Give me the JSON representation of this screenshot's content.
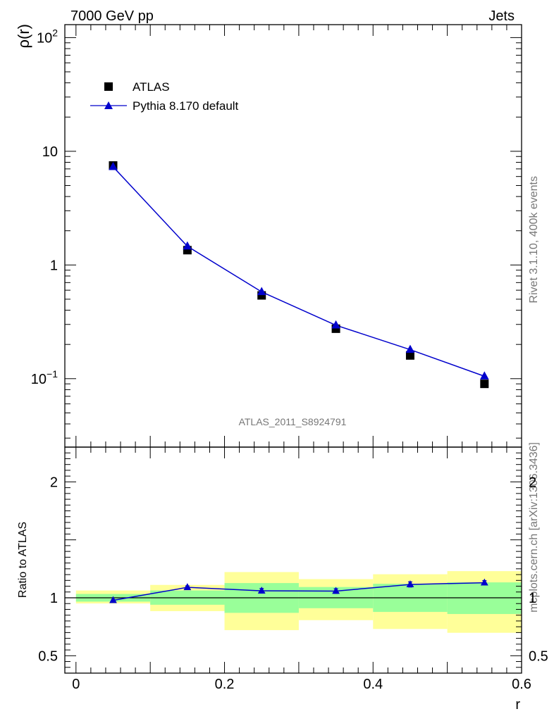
{
  "header": {
    "left_label": "7000 GeV pp",
    "right_label": "Jets"
  },
  "side_labels": {
    "rivet": "Rivet 3.1.10,  400k events",
    "mcplots": "mcplots.cern.ch [arXiv:1306.3436]"
  },
  "watermark": "ATLAS_2011_S8924791",
  "colors": {
    "mc": "#0000cc",
    "data": "#000000",
    "band_inner": "#99ff99",
    "band_outer": "#ffff99"
  },
  "chart_data": [
    {
      "type": "scatter",
      "panel": "main",
      "ylabel": "ρ(r)",
      "xlim": [
        -0.015,
        0.6
      ],
      "ylim": [
        0.025,
        130
      ],
      "yscale": "log",
      "yticks": [
        {
          "value": 100,
          "base": "10",
          "exp": "2"
        },
        {
          "value": 10,
          "base": "10",
          "exp": ""
        },
        {
          "value": 1,
          "base": "1",
          "exp": ""
        },
        {
          "value": 0.1,
          "base": "10",
          "exp": "−1"
        }
      ],
      "legend": {
        "placement": "top-left",
        "entries": [
          {
            "name": "ATLAS",
            "marker": "square"
          },
          {
            "name": "Pythia 8.170 default",
            "marker": "triangle-line"
          }
        ]
      },
      "series": [
        {
          "name": "ATLAS",
          "x": [
            0.05,
            0.15,
            0.25,
            0.35,
            0.45,
            0.55
          ],
          "values": [
            7.5,
            1.35,
            0.54,
            0.275,
            0.16,
            0.09
          ]
        },
        {
          "name": "Pythia 8.170 default",
          "x": [
            0.05,
            0.15,
            0.25,
            0.35,
            0.45,
            0.55
          ],
          "values": [
            7.3,
            1.46,
            0.58,
            0.295,
            0.18,
            0.105
          ]
        }
      ]
    },
    {
      "type": "line",
      "panel": "ratio",
      "ylabel": "Ratio to ATLAS",
      "xlabel": "r",
      "xlim": [
        -0.015,
        0.6
      ],
      "ylim": [
        0.35,
        2.3
      ],
      "yticks": [
        {
          "value": 2,
          "label": "2"
        },
        {
          "value": 1,
          "label": "1"
        },
        {
          "value": 0.5,
          "label": "0.5"
        }
      ],
      "xticks": [
        {
          "value": 0,
          "label": "0"
        },
        {
          "value": 0.2,
          "label": "0.2"
        },
        {
          "value": 0.4,
          "label": "0.4"
        },
        {
          "value": 0.6,
          "label": "0.6"
        }
      ],
      "bins": [
        {
          "lo": 0.0,
          "hi": 0.1,
          "inner": [
            0.967,
            1.033
          ],
          "outer": [
            0.951,
            1.063
          ]
        },
        {
          "lo": 0.1,
          "hi": 0.2,
          "inner": [
            0.94,
            1.063
          ],
          "outer": [
            0.885,
            1.111
          ]
        },
        {
          "lo": 0.2,
          "hi": 0.3,
          "inner": [
            0.87,
            1.127
          ],
          "outer": [
            0.721,
            1.222
          ]
        },
        {
          "lo": 0.3,
          "hi": 0.4,
          "inner": [
            0.91,
            1.093
          ],
          "outer": [
            0.807,
            1.161
          ]
        },
        {
          "lo": 0.4,
          "hi": 0.5,
          "inner": [
            0.878,
            1.121
          ],
          "outer": [
            0.731,
            1.203
          ]
        },
        {
          "lo": 0.5,
          "hi": 0.6,
          "inner": [
            0.86,
            1.133
          ],
          "outer": [
            0.698,
            1.23
          ]
        }
      ],
      "series": [
        {
          "name": "Pythia 8.170 default",
          "x": [
            0.05,
            0.15,
            0.25,
            0.35,
            0.45,
            0.55
          ],
          "values": [
            0.978,
            1.09,
            1.06,
            1.058,
            1.115,
            1.13
          ],
          "errors": [
            0.005,
            0.012,
            0.02,
            0.02,
            0.022,
            0.018
          ]
        }
      ]
    }
  ]
}
